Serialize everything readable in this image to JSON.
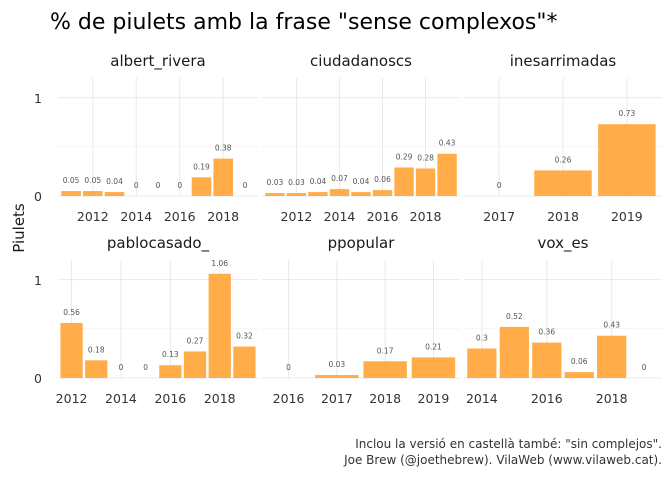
{
  "title": "% de piulets amb la frase \"sense complexos\"*",
  "ylabel": "Piulets",
  "caption": [
    "Inclou la versió en castellà també: \"sin complejos\".",
    "Joe Brew (@joethebrew). VilaWeb (www.vilaweb.cat)."
  ],
  "colors": {
    "bar": "#ffa53a",
    "grid": "#e9e9e9",
    "background": "#ffffff"
  },
  "chart_data": [
    {
      "type": "bar",
      "panel": "albert_rivera",
      "x": [
        2011,
        2012,
        2013,
        2014,
        2015,
        2016,
        2017,
        2018,
        2019
      ],
      "values": [
        0.05,
        0.05,
        0.04,
        0,
        0,
        0,
        0.19,
        0.38,
        0
      ],
      "labels": [
        "0.05",
        "0.05",
        "0.04",
        "0",
        "0",
        "0",
        "0.19",
        "0.38",
        "0"
      ],
      "xticks": [
        2012,
        2014,
        2016,
        2018
      ],
      "xlim": [
        2010.4,
        2019.6
      ],
      "ylim": [
        0,
        1.2
      ],
      "yticks": [
        0,
        1
      ]
    },
    {
      "type": "bar",
      "panel": "ciudadanoscs",
      "x": [
        2011,
        2012,
        2013,
        2014,
        2015,
        2016,
        2017,
        2018,
        2019
      ],
      "values": [
        0.03,
        0.03,
        0.04,
        0.07,
        0.04,
        0.06,
        0.29,
        0.28,
        0.43
      ],
      "labels": [
        "0.03",
        "0.03",
        "0.04",
        "0.07",
        "0.04",
        "0.06",
        "0.29",
        "0.28",
        "0.43"
      ],
      "xticks": [
        2012,
        2014,
        2016,
        2018
      ],
      "xlim": [
        2010.4,
        2019.6
      ],
      "ylim": [
        0,
        1.2
      ],
      "yticks": [
        0,
        1
      ]
    },
    {
      "type": "bar",
      "panel": "inesarrimadas",
      "x": [
        2017,
        2018,
        2019
      ],
      "values": [
        0,
        0.26,
        0.73
      ],
      "labels": [
        "0",
        "0.26",
        "0.73"
      ],
      "xticks": [
        2017,
        2018,
        2019
      ],
      "xlim": [
        2016.45,
        2019.55
      ],
      "ylim": [
        0,
        1.2
      ],
      "yticks": [
        0,
        1
      ]
    },
    {
      "type": "bar",
      "panel": "pablocasado_",
      "x": [
        2012,
        2013,
        2014,
        2015,
        2016,
        2017,
        2018,
        2019
      ],
      "values": [
        0.56,
        0.18,
        0,
        0,
        0.13,
        0.27,
        1.06,
        0.32
      ],
      "labels": [
        "0.56",
        "0.18",
        "0",
        "0",
        "0.13",
        "0.27",
        "1.06",
        "0.32"
      ],
      "xticks": [
        2012,
        2014,
        2016,
        2018
      ],
      "xlim": [
        2011.45,
        2019.55
      ],
      "ylim": [
        0,
        1.2
      ],
      "yticks": [
        0,
        1
      ]
    },
    {
      "type": "bar",
      "panel": "ppopular",
      "x": [
        2016,
        2017,
        2018,
        2019
      ],
      "values": [
        0,
        0.03,
        0.17,
        0.21
      ],
      "labels": [
        "0",
        "0.03",
        "0.17",
        "0.21"
      ],
      "xticks": [
        2016,
        2017,
        2018,
        2019
      ],
      "xlim": [
        2015.45,
        2019.55
      ],
      "ylim": [
        0,
        1.2
      ],
      "yticks": [
        0,
        1
      ]
    },
    {
      "type": "bar",
      "panel": "vox_es",
      "x": [
        2014,
        2015,
        2016,
        2017,
        2018,
        2019
      ],
      "values": [
        0.3,
        0.52,
        0.36,
        0.06,
        0.43,
        0
      ],
      "labels": [
        "0.3",
        "0.52",
        "0.36",
        "0.06",
        "0.43",
        "0"
      ],
      "xticks": [
        2014,
        2016,
        2018
      ],
      "xlim": [
        2013.45,
        2019.55
      ],
      "ylim": [
        0,
        1.2
      ],
      "yticks": [
        0,
        1
      ]
    }
  ]
}
